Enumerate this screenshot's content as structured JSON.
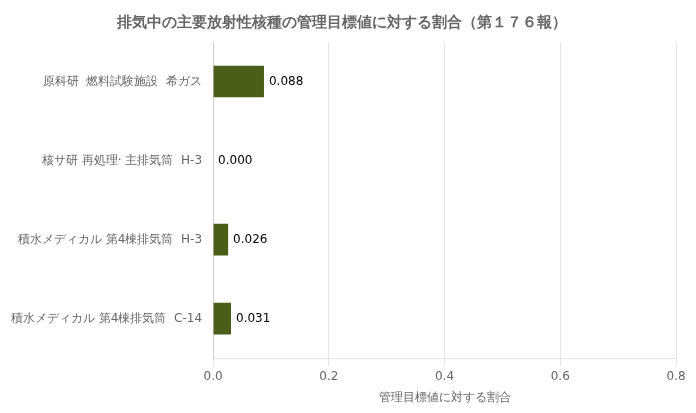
{
  "chart_data": {
    "type": "bar",
    "orientation": "horizontal",
    "title": "排気中の主要放射性核種の管理目標値に対する割合（第１７６報）",
    "x_label": "管理目標値に対する割合",
    "categories": [
      "原科研  燃料試験施設  希ガス",
      "核サ研 再処理· 主排気筒  H-3",
      "積水メディカル 第4棟排気筒  H-3",
      "積水メディカル 第4棟排気筒  C-14"
    ],
    "values": [
      0.088,
      0.0,
      0.026,
      0.031
    ],
    "value_labels": [
      "0.088",
      "0.000",
      "0.026",
      "0.031"
    ],
    "data_labels": true,
    "color": "#4A5E1A",
    "xlim": [
      0.0,
      0.8
    ],
    "xticks": [
      {
        "value": 0.0,
        "label": "0.0"
      },
      0.2,
      0.4,
      0.6,
      0.8
    ],
    "grid": true
  }
}
